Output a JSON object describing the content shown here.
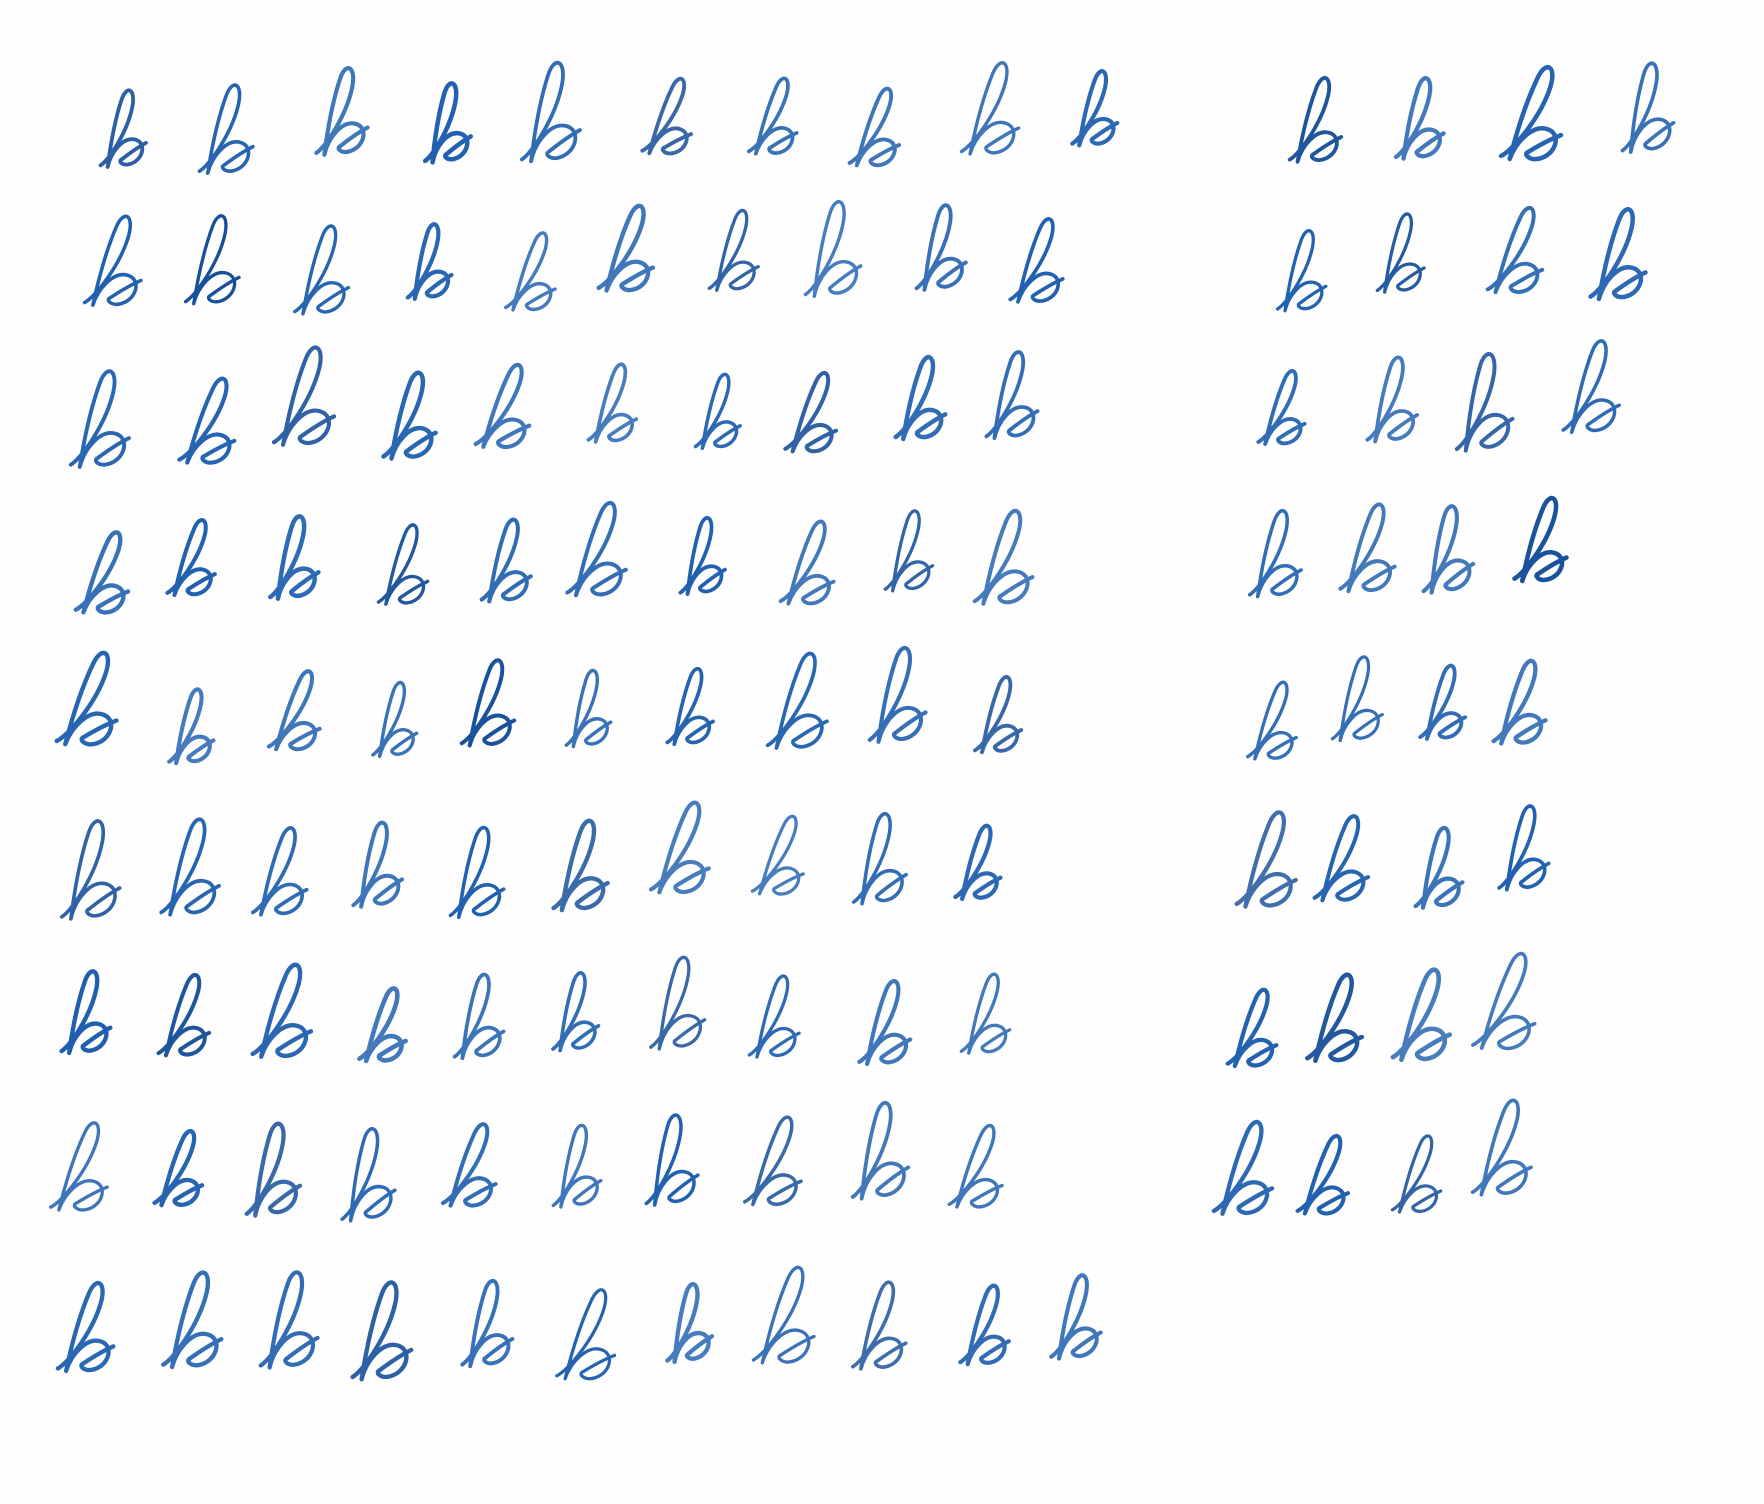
{
  "sheet": {
    "ink_color": "#1f5fae",
    "ink_color_dark": "#174f9a",
    "paper_color": "#fefefe",
    "sample_letter": "b",
    "rows": [
      {
        "count": 14
      },
      {
        "count": 14
      },
      {
        "count": 14
      },
      {
        "count": 14
      },
      {
        "count": 14
      },
      {
        "count": 14
      },
      {
        "count": 14
      },
      {
        "count": 14
      },
      {
        "count": 11
      }
    ]
  }
}
